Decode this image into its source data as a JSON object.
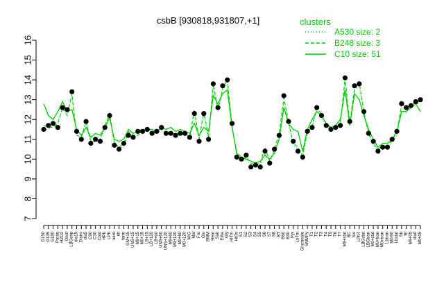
{
  "chart_data": {
    "type": "line",
    "title": "csbB [930818,931807,+1]",
    "xlabel": "",
    "ylabel": "",
    "ylim": [
      7,
      16
    ],
    "yticks": [
      7,
      8,
      9,
      10,
      11,
      12,
      13,
      14,
      15,
      16
    ],
    "grid": false,
    "legend_placement": "top-right",
    "colors": {
      "line": "#00cc00",
      "points": "#000000",
      "axis": "#000000"
    },
    "legend": {
      "title": "clusters",
      "items": [
        {
          "label": "A530 size: 2",
          "style": "dotted"
        },
        {
          "label": "B248 size: 3",
          "style": "dashed"
        },
        {
          "label": "C10 size: 51",
          "style": "solid"
        }
      ]
    },
    "x_tick_labels": [
      "G150",
      "G135",
      "G180",
      "Paraq",
      "H2O2",
      "Oxctl",
      "LBGexp",
      "dia15",
      "Diami",
      "dia5",
      "C90",
      "C30",
      "Cold",
      "HPh",
      "LPh",
      "aero",
      "nit",
      "ferm",
      "GM+15",
      "UNS+15",
      "M9+15",
      "M0+15",
      "LB+15",
      "LB+120",
      "LB+60",
      "UNS+60",
      "UNS+120",
      "M9+60",
      "M9+120",
      "M0+60",
      "M0+120",
      "M/G",
      "Mal",
      "Fru",
      "Glu",
      "BMM",
      "Heat",
      "Salt",
      "Etha",
      "Gly",
      "HiTm",
      "HiOs",
      "S1",
      "S2",
      "S3",
      "S4",
      "S5",
      "S6",
      "S7",
      "S8",
      "BT",
      "B60",
      "B30",
      "Pyr",
      "LoTm",
      "Gluconate",
      "SMMPy",
      "T1",
      "T2",
      "T3",
      "T4",
      "T5",
      "T6",
      "T7",
      "M9+stat",
      "BC",
      "Sw",
      "LPhT",
      "LBGstat",
      "LBGtran",
      "M0+stat",
      "M9+tran",
      "M0+tran",
      "Lbtran",
      "M0/90",
      "Lbstat",
      "Sb",
      "BI",
      "M9+05",
      "dia0",
      "M0+05"
    ],
    "series": [
      {
        "name": "C10 size: 51",
        "style": "solid",
        "values": [
          12.8,
          12.2,
          12.0,
          12.4,
          12.9,
          12.4,
          12.5,
          11.5,
          11.2,
          11.6,
          11.1,
          11.3,
          11.2,
          11.6,
          12.1,
          11.0,
          10.9,
          11.0,
          11.5,
          11.3,
          11.4,
          11.5,
          11.5,
          11.5,
          11.4,
          11.6,
          11.5,
          11.6,
          11.4,
          11.5,
          11.4,
          11.3,
          11.8,
          11.2,
          11.6,
          11.4,
          13.2,
          12.8,
          13.3,
          13.5,
          11.6,
          10.3,
          10.1,
          10.0,
          9.9,
          9.8,
          9.9,
          10.2,
          10.0,
          10.3,
          11.0,
          12.6,
          11.8,
          11.5,
          11.4,
          10.4,
          11.5,
          12.0,
          12.4,
          12.2,
          11.8,
          11.6,
          11.7,
          12.0,
          13.5,
          11.7,
          13.3,
          13.0,
          12.2,
          11.5,
          11.0,
          10.6,
          10.8,
          10.8,
          11.0,
          11.4,
          12.4,
          12.4,
          12.6,
          12.8,
          12.4
        ]
      },
      {
        "name": "B248 size: 3",
        "style": "dashed",
        "values": [
          11.7,
          11.6,
          11.6,
          11.8,
          12.6,
          12.2,
          13.3,
          11.2,
          11.1,
          11.9,
          10.9,
          10.9,
          11.0,
          11.7,
          12.3,
          10.8,
          10.6,
          10.8,
          11.4,
          11.2,
          11.2,
          11.4,
          11.5,
          11.4,
          11.4,
          11.6,
          11.3,
          11.4,
          11.2,
          11.4,
          11.3,
          11.1,
          12.5,
          11.0,
          12.4,
          11.1,
          13.8,
          12.5,
          13.6,
          14.0,
          11.7,
          10.2,
          10.0,
          10.1,
          9.8,
          9.7,
          9.8,
          10.6,
          9.9,
          10.5,
          11.3,
          13.1,
          11.9,
          10.8,
          10.6,
          10.2,
          11.4,
          11.6,
          12.7,
          12.2,
          11.8,
          11.5,
          11.6,
          11.8,
          14.1,
          11.8,
          13.6,
          13.9,
          12.4,
          11.3,
          10.8,
          10.5,
          10.7,
          10.6,
          11.0,
          11.3,
          12.8,
          12.6,
          12.7,
          12.9,
          12.9
        ]
      },
      {
        "name": "A530 size: 2",
        "style": "dotted",
        "values": [
          11.5,
          11.5,
          11.7,
          11.9,
          12.5,
          12.3,
          13.1,
          11.3,
          11.2,
          11.8,
          10.8,
          10.9,
          10.9,
          11.6,
          12.2,
          10.8,
          10.5,
          10.7,
          11.3,
          11.2,
          11.3,
          11.4,
          11.4,
          11.4,
          11.3,
          11.5,
          11.3,
          11.3,
          11.1,
          11.3,
          11.2,
          11.0,
          12.2,
          11.0,
          12.2,
          11.1,
          13.6,
          12.4,
          13.5,
          13.8,
          11.7,
          10.1,
          9.9,
          10.0,
          9.7,
          9.6,
          9.7,
          10.3,
          9.8,
          10.4,
          11.1,
          12.9,
          11.8,
          10.7,
          10.5,
          10.1,
          11.3,
          11.6,
          12.5,
          12.1,
          11.7,
          11.4,
          11.5,
          11.7,
          13.9,
          11.7,
          13.5,
          13.7,
          12.3,
          11.2,
          10.7,
          10.4,
          10.6,
          10.5,
          10.9,
          11.2,
          12.6,
          12.5,
          12.6,
          12.8,
          12.8
        ]
      }
    ],
    "points": {
      "name": "",
      "values": [
        11.5,
        11.7,
        11.8,
        11.6,
        12.6,
        12.5,
        13.4,
        11.4,
        11.0,
        11.9,
        10.8,
        11.0,
        10.9,
        11.6,
        12.2,
        10.7,
        10.5,
        10.8,
        11.2,
        11.1,
        11.4,
        11.4,
        11.5,
        11.3,
        11.4,
        11.6,
        11.3,
        11.3,
        11.2,
        11.3,
        11.3,
        11.1,
        12.3,
        10.9,
        12.3,
        11.0,
        13.8,
        12.6,
        13.7,
        14.0,
        11.8,
        10.1,
        10.0,
        10.2,
        9.6,
        9.7,
        9.6,
        10.4,
        9.8,
        10.5,
        11.2,
        13.2,
        11.9,
        10.9,
        10.4,
        10.1,
        11.4,
        11.6,
        12.6,
        12.2,
        11.7,
        11.5,
        11.6,
        11.7,
        14.1,
        11.9,
        13.7,
        13.8,
        12.4,
        11.3,
        10.9,
        10.4,
        10.6,
        10.6,
        11.0,
        11.4,
        12.8,
        12.6,
        12.7,
        12.9,
        13.0
      ]
    }
  }
}
